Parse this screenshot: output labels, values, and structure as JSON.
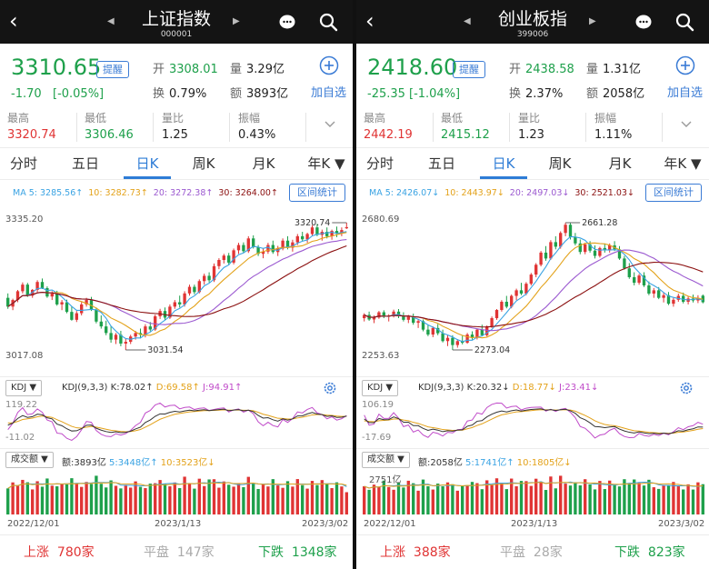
{
  "colors": {
    "up": "#e03434",
    "down": "#1ea04b",
    "accent": "#2e7cd6",
    "ma5": "#3aa3e3",
    "ma10": "#e3a21a",
    "ma20": "#9b59d0",
    "ma30": "#8b1010",
    "k": "#333333",
    "d": "#e3a21a",
    "j": "#c04bc9"
  },
  "panes": [
    {
      "title": "上证指数",
      "code": "000001",
      "price": "3310.65",
      "change": "-1.70",
      "change_pct": "[-0.05%]",
      "remind": "提醒",
      "open_label": "开",
      "open_value": "3308.01",
      "volume_label": "量",
      "volume_value": "3.29亿",
      "turnover_label": "换",
      "turnover_value": "0.79%",
      "amount_label": "额",
      "amount_value": "3893亿",
      "add_label": "加自选",
      "stats": [
        {
          "label": "最高",
          "value": "3320.74"
        },
        {
          "label": "最低",
          "value": "3306.46"
        },
        {
          "label": "量比",
          "value": "1.25"
        },
        {
          "label": "振幅",
          "value": "0.43%"
        }
      ],
      "tabs": [
        "分时",
        "五日",
        "日K",
        "周K",
        "月K",
        "年K"
      ],
      "ma_labels": [
        "MA 5: 3285.56↑",
        "10: 3282.73↑",
        "20: 3272.38↑",
        "30: 3264.00↑"
      ],
      "range_button": "区间统计",
      "axis_top": "3335.20",
      "axis_bottom": "3017.08",
      "high_mark": "3320.74",
      "low_mark": "3031.54",
      "kdj_select": "KDJ",
      "kdj_params": "KDJ(9,3,3)",
      "kdj_k": "K:78.02↑",
      "kdj_d": "D:69.58↑",
      "kdj_j": "J:94.91↑",
      "kdj_top": "119.22",
      "kdj_bottom": "-11.02",
      "vol_select": "成交额",
      "vol_amount": "额:3893亿",
      "vol_ma5": "5:3448亿↑",
      "vol_ma10": "10:3523亿↓",
      "dates": [
        "2022/12/01",
        "2023/1/13",
        "2023/3/02"
      ],
      "footer": {
        "up_label": "上涨",
        "up_count": "780家",
        "flat_label": "平盘",
        "flat_count": "147家",
        "down_label": "下跌",
        "down_count": "1348家"
      },
      "chart_data": {
        "type": "candlestick",
        "y_range": [
          3017.08,
          3335.2
        ],
        "ohlc": [
          [
            3150,
            3160,
            3125,
            3130
          ],
          [
            3130,
            3148,
            3122,
            3145
          ],
          [
            3145,
            3168,
            3140,
            3165
          ],
          [
            3165,
            3185,
            3160,
            3180
          ],
          [
            3180,
            3184,
            3152,
            3155
          ],
          [
            3155,
            3170,
            3150,
            3168
          ],
          [
            3168,
            3190,
            3163,
            3186
          ],
          [
            3186,
            3194,
            3170,
            3172
          ],
          [
            3172,
            3176,
            3150,
            3153
          ],
          [
            3153,
            3165,
            3145,
            3160
          ],
          [
            3160,
            3166,
            3132,
            3135
          ],
          [
            3135,
            3145,
            3122,
            3140
          ],
          [
            3140,
            3146,
            3115,
            3118
          ],
          [
            3118,
            3130,
            3098,
            3100
          ],
          [
            3100,
            3120,
            3095,
            3115
          ],
          [
            3115,
            3140,
            3110,
            3135
          ],
          [
            3135,
            3150,
            3130,
            3145
          ],
          [
            3145,
            3152,
            3120,
            3123
          ],
          [
            3123,
            3128,
            3092,
            3096
          ],
          [
            3096,
            3110,
            3080,
            3085
          ],
          [
            3085,
            3098,
            3065,
            3070
          ],
          [
            3070,
            3085,
            3048,
            3055
          ],
          [
            3055,
            3070,
            3045,
            3066
          ],
          [
            3066,
            3075,
            3040,
            3046
          ],
          [
            3046,
            3058,
            3031.54,
            3050
          ],
          [
            3050,
            3066,
            3045,
            3062
          ],
          [
            3062,
            3075,
            3055,
            3070
          ],
          [
            3070,
            3080,
            3058,
            3066
          ],
          [
            3066,
            3090,
            3060,
            3085
          ],
          [
            3085,
            3095,
            3074,
            3078
          ],
          [
            3078,
            3112,
            3075,
            3108
          ],
          [
            3108,
            3125,
            3102,
            3120
          ],
          [
            3120,
            3128,
            3100,
            3105
          ],
          [
            3105,
            3135,
            3102,
            3130
          ],
          [
            3130,
            3145,
            3125,
            3140
          ],
          [
            3140,
            3155,
            3128,
            3135
          ],
          [
            3135,
            3165,
            3130,
            3160
          ],
          [
            3160,
            3180,
            3155,
            3175
          ],
          [
            3175,
            3180,
            3158,
            3163
          ],
          [
            3163,
            3192,
            3160,
            3188
          ],
          [
            3188,
            3205,
            3180,
            3200
          ],
          [
            3200,
            3208,
            3185,
            3190
          ],
          [
            3190,
            3228,
            3186,
            3222
          ],
          [
            3222,
            3240,
            3215,
            3236
          ],
          [
            3236,
            3250,
            3228,
            3246
          ],
          [
            3246,
            3252,
            3225,
            3230
          ],
          [
            3230,
            3262,
            3226,
            3258
          ],
          [
            3258,
            3275,
            3250,
            3270
          ],
          [
            3270,
            3276,
            3252,
            3256
          ],
          [
            3256,
            3290,
            3252,
            3285
          ],
          [
            3285,
            3292,
            3262,
            3265
          ],
          [
            3265,
            3270,
            3245,
            3250
          ],
          [
            3250,
            3262,
            3240,
            3255
          ],
          [
            3255,
            3275,
            3250,
            3270
          ],
          [
            3270,
            3280,
            3250,
            3254
          ],
          [
            3254,
            3268,
            3245,
            3262
          ],
          [
            3262,
            3285,
            3258,
            3280
          ],
          [
            3280,
            3290,
            3260,
            3264
          ],
          [
            3264,
            3282,
            3255,
            3276
          ],
          [
            3276,
            3295,
            3270,
            3290
          ],
          [
            3290,
            3300,
            3278,
            3283
          ],
          [
            3283,
            3298,
            3275,
            3295
          ],
          [
            3295,
            3315,
            3290,
            3310
          ],
          [
            3310,
            3318,
            3290,
            3293
          ],
          [
            3293,
            3305,
            3280,
            3300
          ],
          [
            3300,
            3310,
            3285,
            3290
          ],
          [
            3290,
            3305,
            3282,
            3302
          ],
          [
            3302,
            3312,
            3288,
            3296
          ],
          [
            3296,
            3310,
            3290,
            3304
          ],
          [
            3308.01,
            3320.74,
            3306.46,
            3310.65
          ]
        ]
      }
    },
    {
      "title": "创业板指",
      "code": "399006",
      "price": "2418.60",
      "change": "-25.35",
      "change_pct": "[-1.04%]",
      "remind": "提醒",
      "open_label": "开",
      "open_value": "2438.58",
      "volume_label": "量",
      "volume_value": "1.31亿",
      "turnover_label": "换",
      "turnover_value": "2.37%",
      "amount_label": "额",
      "amount_value": "2058亿",
      "add_label": "加自选",
      "stats": [
        {
          "label": "最高",
          "value": "2442.19"
        },
        {
          "label": "最低",
          "value": "2415.12"
        },
        {
          "label": "量比",
          "value": "1.23"
        },
        {
          "label": "振幅",
          "value": "1.11%"
        }
      ],
      "tabs": [
        "分时",
        "五日",
        "日K",
        "周K",
        "月K",
        "年K"
      ],
      "ma_labels": [
        "MA 5: 2426.07↓",
        "10: 2443.97↓",
        "20: 2497.03↓",
        "30: 2521.03↓"
      ],
      "range_button": "区间统计",
      "axis_top": "2680.69",
      "axis_bottom": "2253.63",
      "high_mark": "2661.28",
      "low_mark": "2273.04",
      "kdj_select": "KDJ",
      "kdj_params": "KDJ(9,3,3)",
      "kdj_k": "K:20.32↓",
      "kdj_d": "D:18.77↓",
      "kdj_j": "J:23.41↓",
      "kdj_top": "106.19",
      "kdj_bottom": "-17.69",
      "vol_select": "成交额",
      "vol_amount": "额:2058亿",
      "vol_ma5": "5:1741亿↑",
      "vol_ma10": "10:1805亿↓",
      "vol_top": "2751亿",
      "dates": [
        "2022/12/01",
        "2023/1/13",
        "2023/3/02"
      ],
      "footer": {
        "up_label": "上涨",
        "up_count": "388家",
        "flat_label": "平盘",
        "flat_count": "28家",
        "down_label": "下跌",
        "down_count": "823家"
      },
      "chart_data": {
        "type": "candlestick",
        "y_range": [
          2253.63,
          2680.69
        ],
        "ohlc": [
          [
            2370,
            2385,
            2360,
            2380
          ],
          [
            2380,
            2390,
            2362,
            2366
          ],
          [
            2366,
            2378,
            2355,
            2372
          ],
          [
            2372,
            2392,
            2368,
            2388
          ],
          [
            2388,
            2394,
            2370,
            2374
          ],
          [
            2374,
            2382,
            2360,
            2378
          ],
          [
            2378,
            2396,
            2372,
            2390
          ],
          [
            2390,
            2398,
            2370,
            2376
          ],
          [
            2376,
            2388,
            2360,
            2365
          ],
          [
            2365,
            2380,
            2355,
            2376
          ],
          [
            2376,
            2384,
            2350,
            2356
          ],
          [
            2356,
            2366,
            2340,
            2361
          ],
          [
            2361,
            2366,
            2330,
            2335
          ],
          [
            2335,
            2350,
            2315,
            2320
          ],
          [
            2320,
            2345,
            2312,
            2340
          ],
          [
            2340,
            2352,
            2318,
            2324
          ],
          [
            2324,
            2335,
            2296,
            2300
          ],
          [
            2300,
            2318,
            2285,
            2310
          ],
          [
            2310,
            2318,
            2273.04,
            2288
          ],
          [
            2288,
            2306,
            2280,
            2300
          ],
          [
            2300,
            2316,
            2290,
            2295
          ],
          [
            2295,
            2325,
            2292,
            2320
          ],
          [
            2320,
            2330,
            2305,
            2310
          ],
          [
            2310,
            2338,
            2305,
            2335
          ],
          [
            2335,
            2350,
            2315,
            2318
          ],
          [
            2318,
            2348,
            2314,
            2345
          ],
          [
            2345,
            2375,
            2340,
            2370
          ],
          [
            2370,
            2398,
            2365,
            2395
          ],
          [
            2395,
            2425,
            2390,
            2420
          ],
          [
            2420,
            2438,
            2400,
            2405
          ],
          [
            2405,
            2442,
            2400,
            2438
          ],
          [
            2438,
            2460,
            2425,
            2455
          ],
          [
            2455,
            2478,
            2440,
            2445
          ],
          [
            2445,
            2480,
            2440,
            2475
          ],
          [
            2475,
            2508,
            2470,
            2503
          ],
          [
            2503,
            2538,
            2495,
            2533
          ],
          [
            2533,
            2575,
            2528,
            2570
          ],
          [
            2570,
            2590,
            2545,
            2552
          ],
          [
            2552,
            2608,
            2548,
            2602
          ],
          [
            2602,
            2620,
            2580,
            2588
          ],
          [
            2588,
            2635,
            2582,
            2630
          ],
          [
            2630,
            2661.28,
            2620,
            2655
          ],
          [
            2655,
            2660,
            2610,
            2618
          ],
          [
            2618,
            2630,
            2592,
            2598
          ],
          [
            2598,
            2610,
            2565,
            2572
          ],
          [
            2572,
            2600,
            2565,
            2595
          ],
          [
            2595,
            2605,
            2570,
            2576
          ],
          [
            2576,
            2592,
            2552,
            2560
          ],
          [
            2560,
            2588,
            2555,
            2584
          ],
          [
            2584,
            2598,
            2570,
            2578
          ],
          [
            2578,
            2598,
            2570,
            2592
          ],
          [
            2592,
            2605,
            2575,
            2580
          ],
          [
            2580,
            2590,
            2548,
            2552
          ],
          [
            2552,
            2560,
            2518,
            2522
          ],
          [
            2522,
            2538,
            2490,
            2495
          ],
          [
            2495,
            2510,
            2470,
            2478
          ],
          [
            2478,
            2505,
            2472,
            2500
          ],
          [
            2500,
            2510,
            2465,
            2470
          ],
          [
            2470,
            2482,
            2440,
            2445
          ],
          [
            2445,
            2462,
            2432,
            2455
          ],
          [
            2455,
            2465,
            2428,
            2432
          ],
          [
            2432,
            2448,
            2418,
            2440
          ],
          [
            2440,
            2450,
            2410,
            2414
          ],
          [
            2414,
            2432,
            2405,
            2426
          ],
          [
            2426,
            2445,
            2420,
            2438
          ],
          [
            2438,
            2448,
            2415,
            2420
          ],
          [
            2420,
            2436,
            2412,
            2430
          ],
          [
            2430,
            2442,
            2418,
            2424
          ],
          [
            2424,
            2440,
            2416,
            2432
          ],
          [
            2438.58,
            2442.19,
            2415.12,
            2418.6
          ]
        ]
      }
    }
  ]
}
